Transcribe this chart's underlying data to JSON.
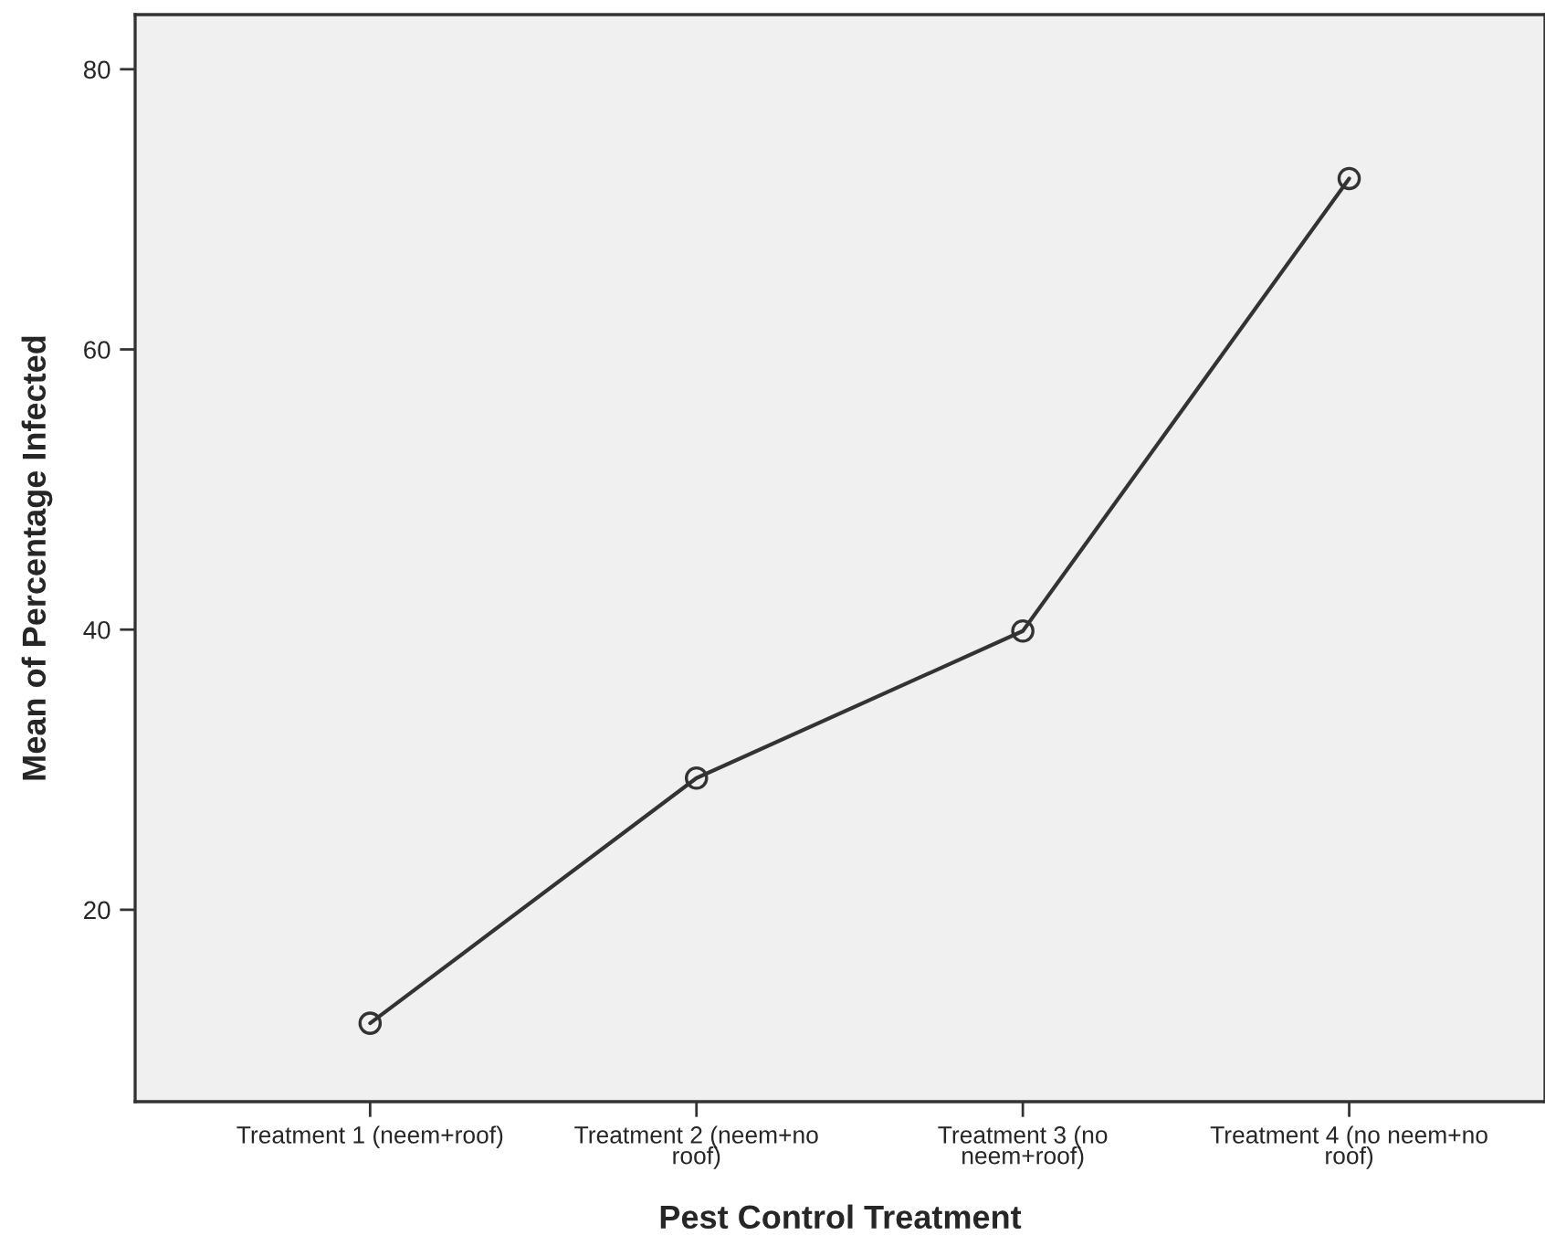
{
  "chart_data": {
    "type": "line",
    "xlabel": "Pest Control Treatment",
    "ylabel": "Mean of Percentage Infected",
    "categories": [
      "Treatment 1 (neem+roof)",
      "Treatment 2 (neem+no\nroof)",
      "Treatment 3 (no\nneem+roof)",
      "Treatment 4 (no neem+no\nroof)"
    ],
    "series": [
      {
        "color": "#333333",
        "values": [
          11.9,
          29.4,
          39.9,
          72.2
        ]
      }
    ],
    "ylim": [
      6.3,
      83.9
    ],
    "yticks": [
      20,
      40,
      60,
      80
    ],
    "grid": false,
    "marker": "circle",
    "line_style": "solid"
  }
}
